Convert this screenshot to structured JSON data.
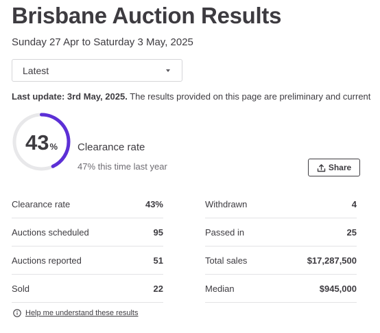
{
  "page": {
    "title": "Brisbane Auction Results",
    "date_range": "Sunday 27 Apr to Saturday 3 May, 2025"
  },
  "filter": {
    "selected": "Latest"
  },
  "update": {
    "bold": "Last update: 3rd May, 2025.",
    "text": " The results provided on this page are preliminary and current"
  },
  "gauge": {
    "value": "43",
    "unit": "%",
    "fraction": 0.43,
    "label": "Clearance rate",
    "last_year": "47% this time last year",
    "color": "#5c2fd6",
    "track_color": "#e8e8ea"
  },
  "share": {
    "label": "Share",
    "icon": "upload-icon"
  },
  "stats": {
    "left": [
      {
        "label": "Clearance rate",
        "value": "43%"
      },
      {
        "label": "Auctions scheduled",
        "value": "95"
      },
      {
        "label": "Auctions reported",
        "value": "51"
      },
      {
        "label": "Sold",
        "value": "22"
      }
    ],
    "right": [
      {
        "label": "Withdrawn",
        "value": "4"
      },
      {
        "label": "Passed in",
        "value": "25"
      },
      {
        "label": "Total sales",
        "value": "$17,287,500"
      },
      {
        "label": "Median",
        "value": "$945,000"
      }
    ]
  },
  "help": {
    "label": "Help me understand these results",
    "icon": "info-icon"
  }
}
